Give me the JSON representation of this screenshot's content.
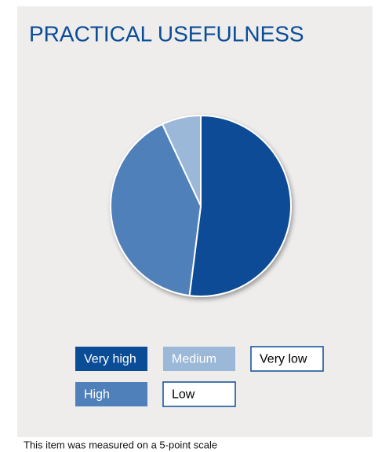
{
  "chart_data": {
    "type": "pie",
    "title": "PRACTICAL USEFULNESS",
    "categories": [
      "Very high",
      "High",
      "Medium",
      "Low",
      "Very low"
    ],
    "values": [
      52,
      41,
      7,
      0,
      0
    ],
    "colors": [
      "#0b4c97",
      "#4f80ba",
      "#9bb8d8",
      "#ffffff",
      "#ffffff"
    ],
    "note": "This item was measured on a 5-point scale"
  }
}
